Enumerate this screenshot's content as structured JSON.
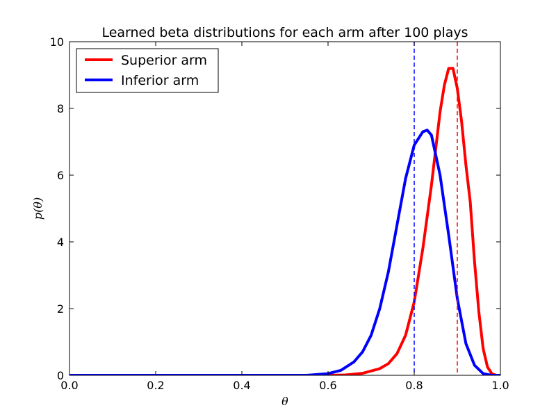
{
  "chart_data": {
    "type": "line",
    "title": "Learned beta distributions for each arm after 100 plays",
    "xlabel": "θ",
    "ylabel": "p(θ)",
    "xlim": [
      0.0,
      1.0
    ],
    "ylim": [
      0,
      10
    ],
    "xticks": [
      0.0,
      0.2,
      0.4,
      0.6,
      0.8,
      1.0
    ],
    "xtick_labels": [
      "0.0",
      "0.2",
      "0.4",
      "0.6",
      "0.8",
      "1.0"
    ],
    "yticks": [
      0,
      2,
      4,
      6,
      8,
      10
    ],
    "ytick_labels": [
      "0",
      "2",
      "4",
      "6",
      "8",
      "10"
    ],
    "grid": false,
    "legend_position": "top-left",
    "series": [
      {
        "name": "Superior arm",
        "color": "#ff0000",
        "x": [
          0.0,
          0.6,
          0.64,
          0.68,
          0.72,
          0.74,
          0.76,
          0.78,
          0.8,
          0.82,
          0.84,
          0.86,
          0.87,
          0.88,
          0.89,
          0.9,
          0.91,
          0.92,
          0.93,
          0.94,
          0.95,
          0.96,
          0.97,
          0.98,
          0.99,
          1.0
        ],
        "y": [
          0.0,
          0.0,
          0.01,
          0.06,
          0.2,
          0.35,
          0.65,
          1.2,
          2.2,
          3.8,
          5.7,
          7.9,
          8.7,
          9.2,
          9.2,
          8.6,
          7.6,
          6.3,
          5.2,
          3.4,
          1.9,
          0.8,
          0.25,
          0.05,
          0.0,
          0.0
        ]
      },
      {
        "name": "Inferior arm",
        "color": "#0000ff",
        "x": [
          0.0,
          0.55,
          0.6,
          0.63,
          0.66,
          0.68,
          0.7,
          0.72,
          0.74,
          0.76,
          0.78,
          0.8,
          0.82,
          0.83,
          0.84,
          0.86,
          0.88,
          0.9,
          0.92,
          0.94,
          0.96,
          0.98,
          1.0
        ],
        "y": [
          0.0,
          0.0,
          0.05,
          0.15,
          0.4,
          0.7,
          1.2,
          2.0,
          3.1,
          4.5,
          5.9,
          6.9,
          7.3,
          7.35,
          7.2,
          6.0,
          4.2,
          2.3,
          0.95,
          0.3,
          0.05,
          0.0,
          0.0
        ]
      }
    ],
    "reference_lines": [
      {
        "x": 0.8,
        "color": "#0000ff",
        "style": "dashed"
      },
      {
        "x": 0.9,
        "color": "#ff0000",
        "style": "dashed"
      }
    ]
  }
}
